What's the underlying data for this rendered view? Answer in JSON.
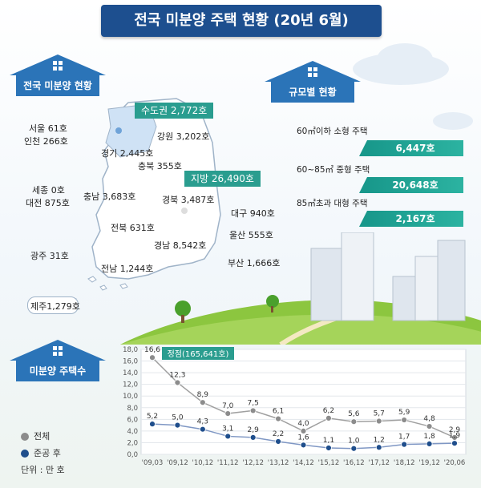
{
  "title": "전국 미분양 주택 현황 (20년 6월)",
  "sections": {
    "national": "전국 미분양 현황",
    "size": "규모별 현황",
    "count": "미분양 주택수"
  },
  "regions": {
    "capital_tag": "수도권 2,772호",
    "local_tag": "지방 26,490호",
    "seoul": "서울  61호",
    "incheon": "인천 266호",
    "gyeonggi": "경기 2,445호",
    "gangwon": "강원 3,202호",
    "chungbuk": "충북 355호",
    "sejong": "세종 0호",
    "chungnam": "충남 3,683호",
    "daejeon": "대전 875호",
    "gyeongbuk": "경북 3,487호",
    "daegu": "대구 940호",
    "jeonbuk": "전북 631호",
    "ulsan": "울산 555호",
    "gyeongnam": "경남 8,542호",
    "gwangju": "광주 31호",
    "jeonnam": "전남 1,244호",
    "busan": "부산 1,666호",
    "jeju": "제주1,279호"
  },
  "size_breakdown": [
    {
      "label": "60㎡이하 소형 주택",
      "value": "6,447호"
    },
    {
      "label": "60~85㎡ 중형 주택",
      "value": "20,648호"
    },
    {
      "label": "85㎡초과 대형 주택",
      "value": "2,167호"
    }
  ],
  "legend": {
    "total": "전체",
    "after_completion": "준공 후",
    "unit": "단위 : 만 호"
  },
  "colors": {
    "title_bg": "#1d4f8f",
    "section_blue": "#2b74b8",
    "teal": "#2a9d8f",
    "total_line": "#8c8c8c",
    "after_line": "#1f4e8c"
  },
  "chart_data": {
    "type": "line",
    "categories": [
      "'09,03",
      "'09,12",
      "'10,12",
      "'11,12",
      "'12,12",
      "'13,12",
      "'14,12",
      "'15,12",
      "'16,12",
      "'17,12",
      "'18,12",
      "'19,12",
      "'20,06"
    ],
    "series": [
      {
        "name": "전체",
        "values": [
          16.6,
          12.3,
          8.9,
          7.0,
          7.5,
          6.1,
          4.0,
          6.2,
          5.6,
          5.7,
          5.9,
          4.8,
          2.9
        ],
        "labels": [
          "16,6",
          "12,3",
          "8,9",
          "7,0",
          "7,5",
          "6,1",
          "4,0",
          "6,2",
          "5,6",
          "5,7",
          "5,9",
          "4,8",
          "2,9"
        ]
      },
      {
        "name": "준공 후",
        "values": [
          5.2,
          5.0,
          4.3,
          3.1,
          2.9,
          2.2,
          1.6,
          1.1,
          1.0,
          1.2,
          1.7,
          1.8,
          1.9
        ],
        "labels": [
          "5,2",
          "5,0",
          "4,3",
          "3,1",
          "2,9",
          "2,2",
          "1,6",
          "1,1",
          "1,0",
          "1,2",
          "1,7",
          "1,8",
          "1,9"
        ]
      }
    ],
    "annotation": "정점(165,641호)",
    "ylim": [
      0,
      18
    ],
    "yticks": [
      "0,0",
      "2,0",
      "4,0",
      "6,0",
      "8,0",
      "10,0",
      "12,0",
      "14,0",
      "16,0",
      "18,0"
    ],
    "grid": true
  }
}
